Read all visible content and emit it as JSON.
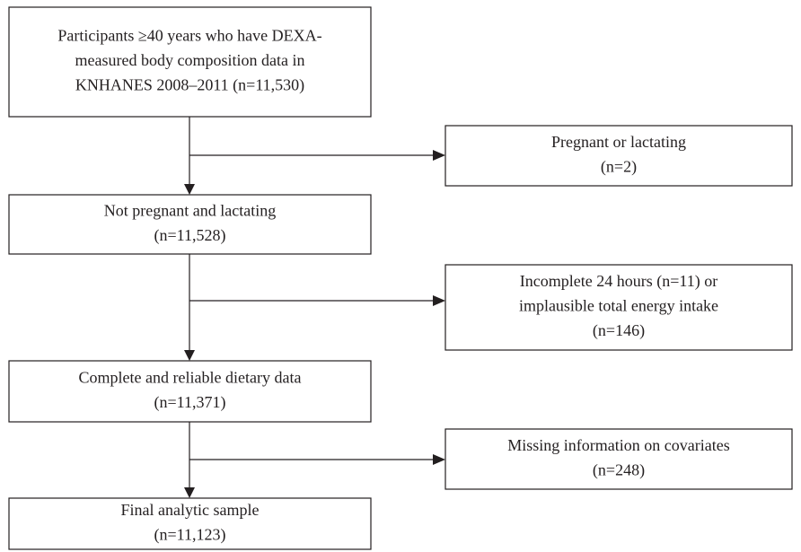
{
  "nodes": [
    {
      "lines": [
        "Participants ≥40 years who have DEXA-",
        "measured body composition data in",
        "KNHANES 2008–2011 (n=11,530)"
      ]
    },
    {
      "lines": [
        "Pregnant or lactating",
        "(n=2)"
      ]
    },
    {
      "lines": [
        "Not pregnant and lactating",
        "(n=11,528)"
      ]
    },
    {
      "lines": [
        "Incomplete 24 hours (n=11) or",
        "implausible total energy intake",
        "(n=146)"
      ]
    },
    {
      "lines": [
        "Complete and reliable dietary data",
        "(n=11,371)"
      ]
    },
    {
      "lines": [
        "Missing information on covariates",
        "(n=248)"
      ]
    },
    {
      "lines": [
        "Final analytic sample",
        "(n=11,123)"
      ]
    }
  ]
}
